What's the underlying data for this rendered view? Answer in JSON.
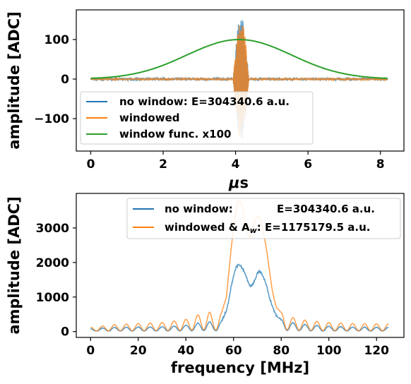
{
  "chart_data": [
    {
      "type": "line",
      "xlabel": "μs",
      "xlabel_prefix": "μ",
      "xlabel_unit": "s",
      "ylabel": "amplitude [ADC]",
      "xlim": [
        -0.4,
        8.65
      ],
      "ylim": [
        -182,
        175
      ],
      "x_ticks": [
        0,
        2,
        4,
        6,
        8
      ],
      "y_ticks": [
        -100,
        0,
        100
      ],
      "y_tick_labels": [
        "−100",
        "0",
        "100"
      ],
      "legend_position": "lower-left",
      "series": [
        {
          "name": "no window: E=304340.6 a.u.",
          "color": "#1f77b4",
          "kind": "noise_burst",
          "baseline_noise": 3,
          "burst_center": 4.15,
          "burst_width": 0.22,
          "burst_amp": 160
        },
        {
          "name": "windowed",
          "color": "#ff7f0e",
          "kind": "noise_burst",
          "baseline_noise": 2,
          "burst_center": 4.15,
          "burst_width": 0.22,
          "burst_amp": 160
        },
        {
          "name": "window func. x100",
          "color": "#2ca02c",
          "kind": "gaussian",
          "center": 4.1,
          "sigma": 1.45,
          "peak": 100,
          "x_range": [
            0,
            8.2
          ]
        }
      ]
    },
    {
      "type": "line",
      "xlabel": "frequency [MHz]",
      "ylabel": "amplitude [ADC]",
      "xlim": [
        -6,
        131.5
      ],
      "ylim": [
        -170,
        4000
      ],
      "x_ticks": [
        0,
        20,
        40,
        60,
        80,
        100,
        120
      ],
      "y_ticks": [
        0,
        1000,
        2000,
        3000
      ],
      "legend_position": "upper-right",
      "series": [
        {
          "name": "no window:",
          "name_suffix": "E=304340.6 a.u.",
          "color": "#1f77b4"
        },
        {
          "name": "windowed & A",
          "name_sub": "w",
          "name_suffix": ": E=1175179.5 a.u.",
          "color": "#ff7f0e"
        }
      ],
      "spectrum_points": {
        "x": [
          0,
          10,
          20,
          30,
          40,
          45,
          50,
          53,
          55,
          57,
          58,
          59,
          60,
          61,
          62,
          63,
          64,
          65,
          66,
          67,
          68,
          69,
          70,
          71,
          72,
          73,
          74,
          75,
          76,
          77,
          78,
          80,
          85,
          90,
          100,
          110,
          125
        ],
        "no_window": [
          80,
          120,
          130,
          140,
          180,
          240,
          280,
          220,
          300,
          600,
          900,
          1300,
          1600,
          1850,
          1950,
          1900,
          1800,
          1650,
          1450,
          1300,
          1350,
          1500,
          1700,
          1750,
          1650,
          1500,
          1300,
          1000,
          800,
          600,
          450,
          350,
          250,
          200,
          150,
          130,
          120
        ],
        "windowed": [
          120,
          200,
          230,
          260,
          350,
          480,
          560,
          420,
          550,
          1000,
          1700,
          2400,
          3000,
          3500,
          3800,
          3750,
          3500,
          3100,
          2800,
          2750,
          2950,
          3200,
          3350,
          3300,
          3050,
          2700,
          2300,
          1800,
          1300,
          950,
          700,
          550,
          400,
          330,
          260,
          230,
          220
        ]
      }
    }
  ]
}
